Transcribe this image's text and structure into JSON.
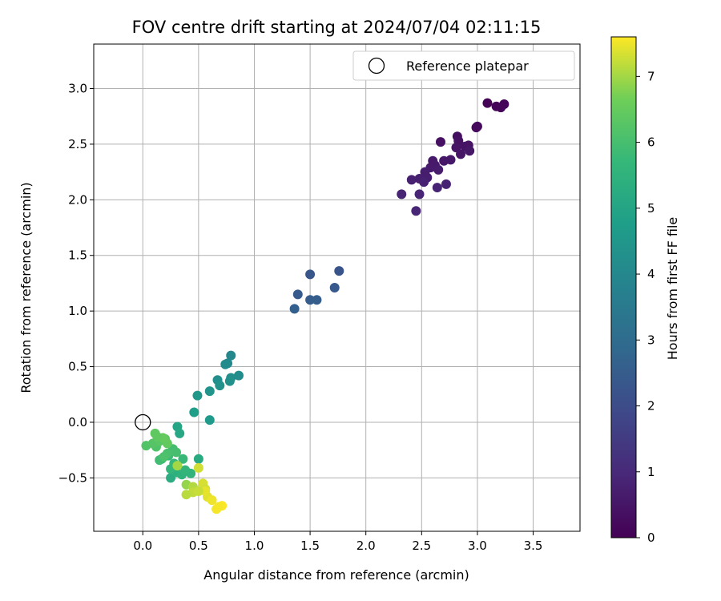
{
  "chart_data": {
    "type": "scatter",
    "title": "FOV centre drift starting at 2024/07/04 02:11:15",
    "xlabel": "Angular distance from reference (arcmin)",
    "ylabel": "Rotation from reference (arcmin)",
    "xlim": [
      -0.44,
      3.92
    ],
    "ylim": [
      -0.98,
      3.4
    ],
    "xticks": [
      0.0,
      0.5,
      1.0,
      1.5,
      2.0,
      2.5,
      3.0,
      3.5
    ],
    "xtick_labels": [
      "0.0",
      "0.5",
      "1.0",
      "1.5",
      "2.0",
      "2.5",
      "3.0",
      "3.5"
    ],
    "yticks": [
      -0.5,
      0.0,
      0.5,
      1.0,
      1.5,
      2.0,
      2.5,
      3.0
    ],
    "ytick_labels": [
      "−0.5",
      "0.0",
      "0.5",
      "1.0",
      "1.5",
      "2.0",
      "2.5",
      "3.0"
    ],
    "grid": true,
    "legend": {
      "position": "top-right",
      "label": "Reference platepar",
      "marker": "open-circle"
    },
    "reference_point": {
      "x": 0.0,
      "y": 0.0
    },
    "colorbar": {
      "label": "Hours from first FF file",
      "colormap": "viridis",
      "range": [
        0,
        7.6
      ],
      "ticks": [
        0,
        1,
        2,
        3,
        4,
        5,
        6,
        7
      ],
      "tick_labels": [
        "0",
        "1",
        "2",
        "3",
        "4",
        "5",
        "6",
        "7"
      ]
    },
    "points": [
      {
        "x": 3.09,
        "y": 2.87,
        "c": 0.05
      },
      {
        "x": 3.17,
        "y": 2.84,
        "c": 0.08
      },
      {
        "x": 3.24,
        "y": 2.86,
        "c": 0.1
      },
      {
        "x": 3.21,
        "y": 2.83,
        "c": 0.12
      },
      {
        "x": 3.0,
        "y": 2.66,
        "c": 0.2
      },
      {
        "x": 2.99,
        "y": 2.65,
        "c": 0.22
      },
      {
        "x": 2.67,
        "y": 2.52,
        "c": 0.4
      },
      {
        "x": 2.82,
        "y": 2.57,
        "c": 0.35
      },
      {
        "x": 2.83,
        "y": 2.53,
        "c": 0.38
      },
      {
        "x": 2.81,
        "y": 2.47,
        "c": 0.45
      },
      {
        "x": 2.89,
        "y": 2.48,
        "c": 0.42
      },
      {
        "x": 2.92,
        "y": 2.49,
        "c": 0.44
      },
      {
        "x": 2.93,
        "y": 2.44,
        "c": 0.5
      },
      {
        "x": 2.85,
        "y": 2.41,
        "c": 0.48
      },
      {
        "x": 2.76,
        "y": 2.36,
        "c": 0.55
      },
      {
        "x": 2.7,
        "y": 2.35,
        "c": 0.52
      },
      {
        "x": 2.6,
        "y": 2.35,
        "c": 0.58
      },
      {
        "x": 2.62,
        "y": 2.31,
        "c": 0.6
      },
      {
        "x": 2.58,
        "y": 2.29,
        "c": 0.62
      },
      {
        "x": 2.65,
        "y": 2.27,
        "c": 0.65
      },
      {
        "x": 2.53,
        "y": 2.25,
        "c": 0.68
      },
      {
        "x": 2.55,
        "y": 2.2,
        "c": 0.7
      },
      {
        "x": 2.48,
        "y": 2.19,
        "c": 0.72
      },
      {
        "x": 2.41,
        "y": 2.18,
        "c": 0.75
      },
      {
        "x": 2.52,
        "y": 2.16,
        "c": 0.78
      },
      {
        "x": 2.72,
        "y": 2.14,
        "c": 0.8
      },
      {
        "x": 2.64,
        "y": 2.11,
        "c": 0.82
      },
      {
        "x": 2.32,
        "y": 2.05,
        "c": 0.85
      },
      {
        "x": 2.48,
        "y": 2.05,
        "c": 0.88
      },
      {
        "x": 2.45,
        "y": 1.9,
        "c": 0.9
      },
      {
        "x": 1.76,
        "y": 1.36,
        "c": 2.25
      },
      {
        "x": 1.5,
        "y": 1.33,
        "c": 2.3
      },
      {
        "x": 1.72,
        "y": 1.21,
        "c": 2.4
      },
      {
        "x": 1.39,
        "y": 1.15,
        "c": 2.45
      },
      {
        "x": 1.5,
        "y": 1.1,
        "c": 2.5
      },
      {
        "x": 1.56,
        "y": 1.1,
        "c": 2.55
      },
      {
        "x": 1.36,
        "y": 1.02,
        "c": 2.6
      },
      {
        "x": 0.79,
        "y": 0.6,
        "c": 4.0
      },
      {
        "x": 0.76,
        "y": 0.53,
        "c": 4.05
      },
      {
        "x": 0.74,
        "y": 0.52,
        "c": 4.1
      },
      {
        "x": 0.86,
        "y": 0.42,
        "c": 4.15
      },
      {
        "x": 0.79,
        "y": 0.4,
        "c": 4.2
      },
      {
        "x": 0.67,
        "y": 0.38,
        "c": 4.25
      },
      {
        "x": 0.78,
        "y": 0.37,
        "c": 4.3
      },
      {
        "x": 0.69,
        "y": 0.33,
        "c": 4.35
      },
      {
        "x": 0.6,
        "y": 0.28,
        "c": 4.4
      },
      {
        "x": 0.49,
        "y": 0.24,
        "c": 4.5
      },
      {
        "x": 0.46,
        "y": 0.09,
        "c": 4.75
      },
      {
        "x": 0.6,
        "y": 0.02,
        "c": 4.6
      },
      {
        "x": 0.31,
        "y": -0.04,
        "c": 5.0
      },
      {
        "x": 0.33,
        "y": -0.1,
        "c": 5.1
      },
      {
        "x": 0.5,
        "y": -0.33,
        "c": 5.2
      },
      {
        "x": 0.25,
        "y": -0.5,
        "c": 5.3
      },
      {
        "x": 0.3,
        "y": -0.45,
        "c": 5.4
      },
      {
        "x": 0.35,
        "y": -0.47,
        "c": 5.5
      },
      {
        "x": 0.43,
        "y": -0.46,
        "c": 5.55
      },
      {
        "x": 0.38,
        "y": -0.43,
        "c": 5.6
      },
      {
        "x": 0.25,
        "y": -0.42,
        "c": 5.65
      },
      {
        "x": 0.28,
        "y": -0.37,
        "c": 5.7
      },
      {
        "x": 0.36,
        "y": -0.33,
        "c": 5.75
      },
      {
        "x": 0.23,
        "y": -0.3,
        "c": 5.8
      },
      {
        "x": 0.17,
        "y": -0.33,
        "c": 5.85
      },
      {
        "x": 0.15,
        "y": -0.34,
        "c": 5.9
      },
      {
        "x": 0.27,
        "y": -0.24,
        "c": 5.95
      },
      {
        "x": 0.3,
        "y": -0.27,
        "c": 6.0
      },
      {
        "x": 0.22,
        "y": -0.28,
        "c": 6.05
      },
      {
        "x": 0.19,
        "y": -0.31,
        "c": 6.1
      },
      {
        "x": 0.12,
        "y": -0.22,
        "c": 6.15
      },
      {
        "x": 0.03,
        "y": -0.21,
        "c": 6.2
      },
      {
        "x": 0.09,
        "y": -0.19,
        "c": 6.25
      },
      {
        "x": 0.15,
        "y": -0.17,
        "c": 6.3
      },
      {
        "x": 0.2,
        "y": -0.15,
        "c": 6.35
      },
      {
        "x": 0.11,
        "y": -0.1,
        "c": 6.4
      },
      {
        "x": 0.22,
        "y": -0.19,
        "c": 6.45
      },
      {
        "x": 0.18,
        "y": -0.14,
        "c": 6.5
      },
      {
        "x": 0.13,
        "y": -0.13,
        "c": 6.4
      },
      {
        "x": 0.31,
        "y": -0.39,
        "c": 7.0
      },
      {
        "x": 0.5,
        "y": -0.41,
        "c": 7.3
      },
      {
        "x": 0.39,
        "y": -0.56,
        "c": 6.9
      },
      {
        "x": 0.45,
        "y": -0.58,
        "c": 7.1
      },
      {
        "x": 0.54,
        "y": -0.55,
        "c": 7.35
      },
      {
        "x": 0.56,
        "y": -0.6,
        "c": 7.3
      },
      {
        "x": 0.58,
        "y": -0.67,
        "c": 7.4
      },
      {
        "x": 0.45,
        "y": -0.63,
        "c": 7.2
      },
      {
        "x": 0.39,
        "y": -0.65,
        "c": 7.15
      },
      {
        "x": 0.56,
        "y": -0.62,
        "c": 7.45
      },
      {
        "x": 0.62,
        "y": -0.7,
        "c": 7.5
      },
      {
        "x": 0.66,
        "y": -0.78,
        "c": 7.55
      },
      {
        "x": 0.71,
        "y": -0.75,
        "c": 7.6
      },
      {
        "x": 0.68,
        "y": -0.76,
        "c": 7.55
      },
      {
        "x": 0.5,
        "y": -0.62,
        "c": 7.25
      }
    ]
  }
}
